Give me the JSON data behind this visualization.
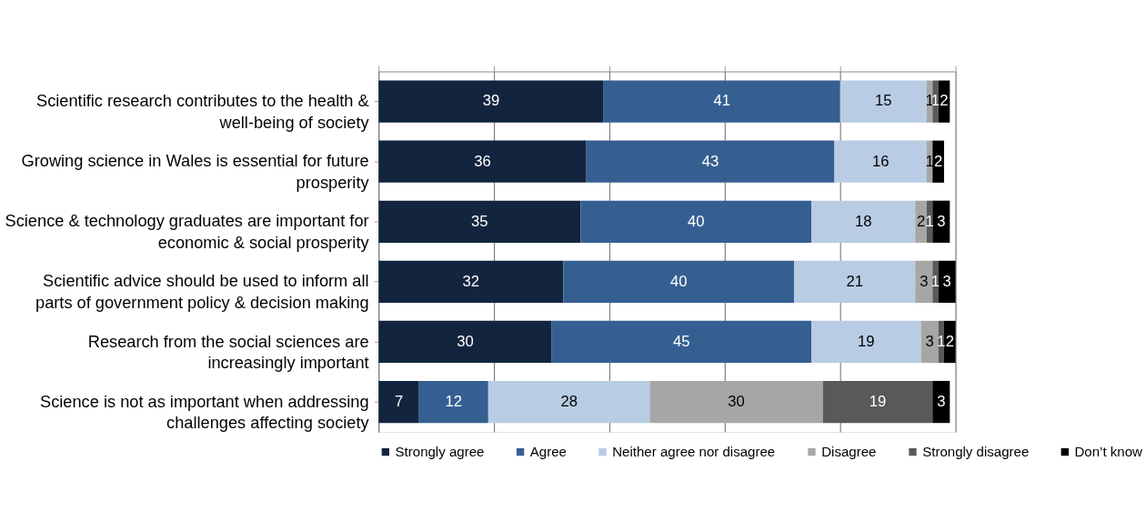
{
  "chart_data": {
    "type": "bar",
    "orientation": "horizontal",
    "stacked": true,
    "data_labels": true,
    "grid": "x",
    "legend": "bottom",
    "tick_labels": "y",
    "categories": [
      "Scientific research contributes to the health & well-being of society",
      "Growing science in Wales is essential for future prosperity",
      "Science & technology graduates are important for economic & social prosperity",
      "Scientific advice should be used to inform all parts of government policy & decision making",
      "Research from the social sciences are increasingly important",
      "Science is not as important when addressing challenges affecting society"
    ],
    "xlim": [
      0,
      100
    ],
    "xticks": [
      {
        "value": 0,
        "label": null
      },
      {
        "value": 20,
        "label": null
      },
      {
        "value": 40,
        "label": null
      },
      {
        "value": 60,
        "label": null
      },
      {
        "value": 80,
        "label": null
      },
      {
        "value": 100,
        "label": null
      }
    ],
    "series": [
      {
        "name": "Strongly agree",
        "color": "#13243f",
        "values": [
          39,
          36,
          35,
          32,
          30,
          7
        ]
      },
      {
        "name": "Agree",
        "color": "#365f91",
        "values": [
          41,
          43,
          40,
          40,
          45,
          12
        ]
      },
      {
        "name": "Neither agree nor disagree",
        "color": "#b8cce4",
        "values": [
          15,
          16,
          18,
          21,
          19,
          28
        ]
      },
      {
        "name": "Disagree",
        "color": "#a6a6a6",
        "values": [
          1,
          1,
          2,
          3,
          3,
          30
        ]
      },
      {
        "name": "Strongly disagree",
        "color": "#595959",
        "values": [
          1,
          null,
          1,
          1,
          1,
          19
        ]
      },
      {
        "name": "Don’t know",
        "color": "#000000",
        "values": [
          2,
          2,
          3,
          3,
          2,
          3
        ]
      }
    ]
  }
}
